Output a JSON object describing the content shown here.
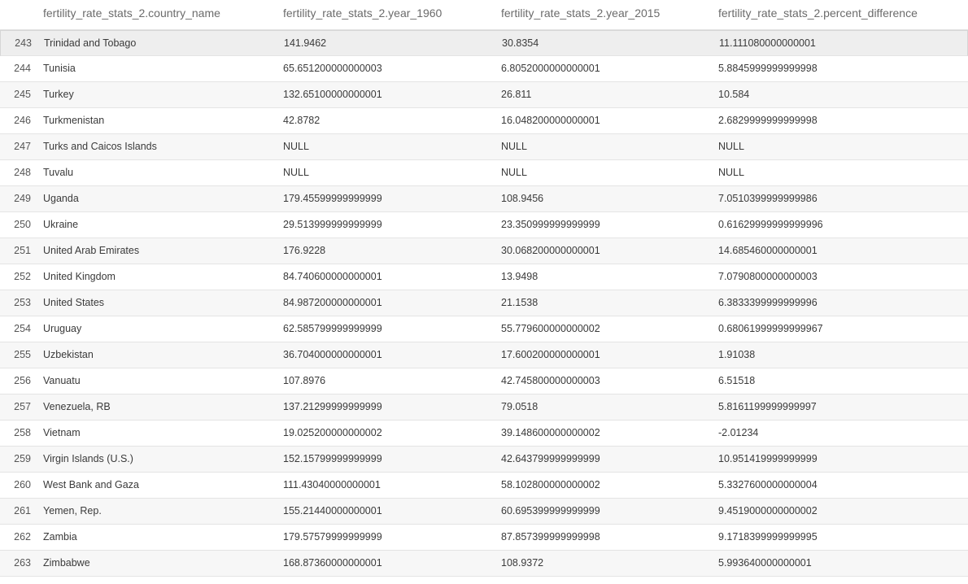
{
  "columns": [
    "fertility_rate_stats_2.country_name",
    "fertility_rate_stats_2.year_1960",
    "fertility_rate_stats_2.year_2015",
    "fertility_rate_stats_2.percent_difference"
  ],
  "rows": [
    {
      "index": "243",
      "country_name": "Trinidad and Tobago",
      "year_1960": "141.9462",
      "year_2015": "30.8354",
      "percent_difference": "11.111080000000001"
    },
    {
      "index": "244",
      "country_name": "Tunisia",
      "year_1960": "65.651200000000003",
      "year_2015": "6.8052000000000001",
      "percent_difference": "5.8845999999999998"
    },
    {
      "index": "245",
      "country_name": "Turkey",
      "year_1960": "132.65100000000001",
      "year_2015": "26.811",
      "percent_difference": "10.584"
    },
    {
      "index": "246",
      "country_name": "Turkmenistan",
      "year_1960": "42.8782",
      "year_2015": "16.048200000000001",
      "percent_difference": "2.6829999999999998"
    },
    {
      "index": "247",
      "country_name": "Turks and Caicos Islands",
      "year_1960": "NULL",
      "year_2015": "NULL",
      "percent_difference": "NULL"
    },
    {
      "index": "248",
      "country_name": "Tuvalu",
      "year_1960": "NULL",
      "year_2015": "NULL",
      "percent_difference": "NULL"
    },
    {
      "index": "249",
      "country_name": "Uganda",
      "year_1960": "179.45599999999999",
      "year_2015": "108.9456",
      "percent_difference": "7.0510399999999986"
    },
    {
      "index": "250",
      "country_name": "Ukraine",
      "year_1960": "29.513999999999999",
      "year_2015": "23.350999999999999",
      "percent_difference": "0.61629999999999996"
    },
    {
      "index": "251",
      "country_name": "United Arab Emirates",
      "year_1960": "176.9228",
      "year_2015": "30.068200000000001",
      "percent_difference": "14.685460000000001"
    },
    {
      "index": "252",
      "country_name": "United Kingdom",
      "year_1960": "84.740600000000001",
      "year_2015": "13.9498",
      "percent_difference": "7.0790800000000003"
    },
    {
      "index": "253",
      "country_name": "United States",
      "year_1960": "84.987200000000001",
      "year_2015": "21.1538",
      "percent_difference": "6.3833399999999996"
    },
    {
      "index": "254",
      "country_name": "Uruguay",
      "year_1960": "62.585799999999999",
      "year_2015": "55.779600000000002",
      "percent_difference": "0.68061999999999967"
    },
    {
      "index": "255",
      "country_name": "Uzbekistan",
      "year_1960": "36.704000000000001",
      "year_2015": "17.600200000000001",
      "percent_difference": "1.91038"
    },
    {
      "index": "256",
      "country_name": "Vanuatu",
      "year_1960": "107.8976",
      "year_2015": "42.745800000000003",
      "percent_difference": "6.51518"
    },
    {
      "index": "257",
      "country_name": "Venezuela, RB",
      "year_1960": "137.21299999999999",
      "year_2015": "79.0518",
      "percent_difference": "5.8161199999999997"
    },
    {
      "index": "258",
      "country_name": "Vietnam",
      "year_1960": "19.025200000000002",
      "year_2015": "39.148600000000002",
      "percent_difference": "-2.01234"
    },
    {
      "index": "259",
      "country_name": "Virgin Islands (U.S.)",
      "year_1960": "152.15799999999999",
      "year_2015": "42.643799999999999",
      "percent_difference": "10.951419999999999"
    },
    {
      "index": "260",
      "country_name": "West Bank and Gaza",
      "year_1960": "111.43040000000001",
      "year_2015": "58.102800000000002",
      "percent_difference": "5.3327600000000004"
    },
    {
      "index": "261",
      "country_name": "Yemen, Rep.",
      "year_1960": "155.21440000000001",
      "year_2015": "60.695399999999999",
      "percent_difference": "9.4519000000000002"
    },
    {
      "index": "262",
      "country_name": "Zambia",
      "year_1960": "179.57579999999999",
      "year_2015": "87.857399999999998",
      "percent_difference": "9.1718399999999995"
    },
    {
      "index": "263",
      "country_name": "Zimbabwe",
      "year_1960": "168.87360000000001",
      "year_2015": "108.9372",
      "percent_difference": "5.993640000000001"
    }
  ]
}
